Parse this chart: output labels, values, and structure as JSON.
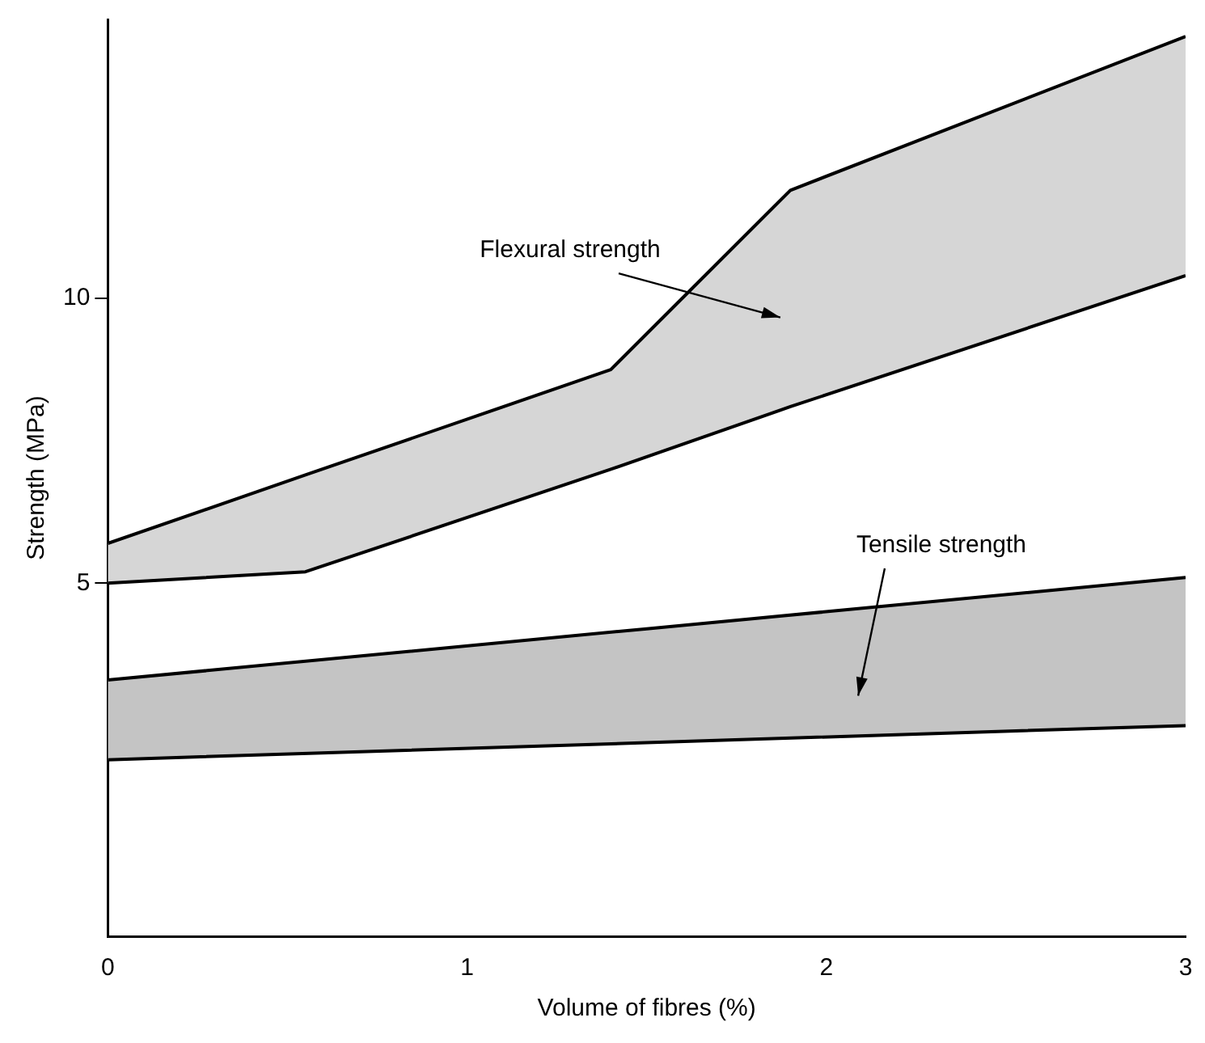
{
  "chart_data": {
    "type": "line",
    "xlabel": "Volume of fibres (%)",
    "ylabel": "Strength (MPa)",
    "xlim": [
      0,
      3
    ],
    "xticks": [
      0,
      1,
      2,
      3
    ],
    "ylim": [
      -1.2,
      14.9
    ],
    "yticks": [
      5,
      10
    ],
    "grid": false,
    "legend": false,
    "marker": "none",
    "series": [
      {
        "color": "#000000",
        "x": [
          0,
          0.55,
          1.4,
          1.9,
          3
        ],
        "values": [
          5.0,
          5.2,
          7.0,
          8.1,
          10.4
        ]
      },
      {
        "type": "area",
        "color": "#d6d6d6",
        "x": [
          0,
          0.55,
          1.4,
          1.9,
          3
        ],
        "values": [
          5.7,
          6.9,
          8.75,
          11.9,
          14.6
        ]
      },
      {
        "color": "#000000",
        "x": [
          0,
          1.5,
          3
        ],
        "values": [
          1.9,
          2.2,
          2.5
        ]
      },
      {
        "type": "area",
        "color": "#c4c4c4",
        "x": [
          0,
          1.5,
          3
        ],
        "values": [
          3.3,
          4.2,
          5.1
        ]
      }
    ],
    "annotations": [
      {
        "text": "Flexural strength",
        "x": 1.62,
        "y": 10.1
      },
      {
        "text": "Tensile strength",
        "x": 2.14,
        "y": 4.58
      }
    ]
  }
}
